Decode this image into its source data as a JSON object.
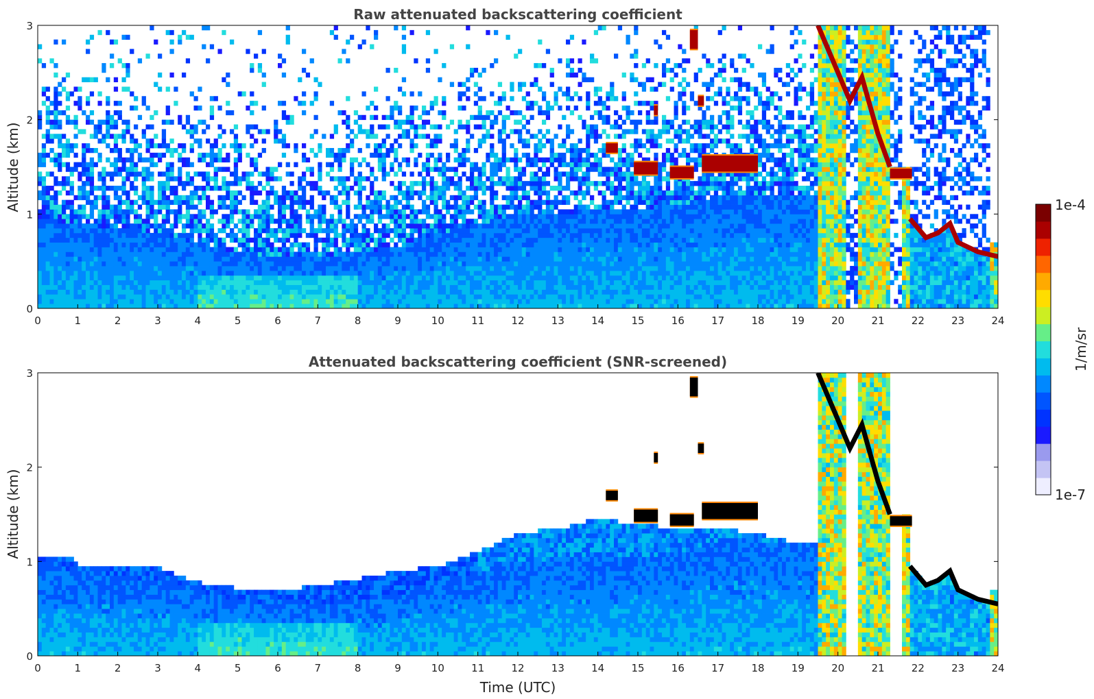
{
  "colors": {
    "scale": [
      "#eeeeff",
      "#c4c4f4",
      "#9a9aee",
      "#1a1aff",
      "#0033ff",
      "#0055ff",
      "#0088ff",
      "#00bbee",
      "#22dddd",
      "#66ee88",
      "#ccee22",
      "#ffdd00",
      "#ffaa00",
      "#ff6600",
      "#ee2200",
      "#aa0000",
      "#7a0000"
    ],
    "screened_over": "#000000",
    "background": "#ffffff"
  },
  "chart_data": [
    {
      "type": "heatmap",
      "title": "Raw attenuated backscattering coefficient",
      "ylabel": "Altitude (km)",
      "xlabel": "",
      "xlim": [
        0,
        24
      ],
      "ylim": [
        0,
        3
      ],
      "xticks": [
        "0",
        "1",
        "2",
        "3",
        "4",
        "5",
        "6",
        "7",
        "8",
        "9",
        "10",
        "11",
        "12",
        "13",
        "14",
        "15",
        "16",
        "17",
        "18",
        "19",
        "20",
        "21",
        "22",
        "23",
        "24"
      ],
      "yticks": [
        "0",
        "1",
        "2",
        "3"
      ],
      "screened": false,
      "boundary_layer_top_km": [
        [
          0,
          0.95
        ],
        [
          1,
          0.9
        ],
        [
          2,
          0.85
        ],
        [
          3,
          0.8
        ],
        [
          4,
          0.7
        ],
        [
          5,
          0.6
        ],
        [
          6,
          0.55
        ],
        [
          7,
          0.55
        ],
        [
          8,
          0.6
        ],
        [
          9,
          0.65
        ],
        [
          10,
          0.8
        ],
        [
          11,
          0.9
        ],
        [
          12,
          1.0
        ],
        [
          13,
          1.0
        ],
        [
          14,
          1.05
        ],
        [
          15,
          1.05
        ],
        [
          16,
          1.1
        ],
        [
          17,
          1.2
        ],
        [
          18,
          1.2
        ],
        [
          19,
          1.2
        ],
        [
          19.5,
          1.2
        ]
      ],
      "cloud_layers": [
        {
          "t0": 14.2,
          "t1": 14.5,
          "base_km": 1.65,
          "top_km": 1.75
        },
        {
          "t0": 14.9,
          "t1": 15.5,
          "base_km": 1.42,
          "top_km": 1.55
        },
        {
          "t0": 15.4,
          "t1": 15.5,
          "base_km": 2.05,
          "top_km": 2.15
        },
        {
          "t0": 15.8,
          "t1": 16.4,
          "base_km": 1.38,
          "top_km": 1.5
        },
        {
          "t0": 16.3,
          "t1": 16.5,
          "base_km": 2.75,
          "top_km": 2.95
        },
        {
          "t0": 16.5,
          "t1": 16.65,
          "base_km": 2.15,
          "top_km": 2.25
        },
        {
          "t0": 16.6,
          "t1": 18.0,
          "base_km": 1.45,
          "top_km": 1.62
        },
        {
          "t0": 21.3,
          "t1": 21.85,
          "base_km": 1.38,
          "top_km": 1.48
        }
      ],
      "precip_columns": [
        [
          19.5,
          20.2
        ],
        [
          20.5,
          21.3
        ],
        [
          21.6,
          21.8
        ],
        [
          23.8,
          24.0
        ]
      ],
      "low_cloud_km": [
        [
          21.8,
          0.95
        ],
        [
          22.2,
          0.75
        ],
        [
          22.5,
          0.8
        ],
        [
          22.8,
          0.9
        ],
        [
          23.0,
          0.7
        ],
        [
          23.5,
          0.6
        ],
        [
          24.0,
          0.55
        ]
      ],
      "slanted_cloud_km": [
        [
          19.5,
          3.0
        ],
        [
          20.0,
          2.5
        ],
        [
          20.3,
          2.2
        ],
        [
          20.6,
          2.45
        ],
        [
          21.0,
          1.85
        ],
        [
          21.3,
          1.5
        ]
      ]
    },
    {
      "type": "heatmap",
      "title": "Attenuated backscattering coefficient (SNR-screened)",
      "ylabel": "Altitude (km)",
      "xlabel": "Time (UTC)",
      "xlim": [
        0,
        24
      ],
      "ylim": [
        0,
        3
      ],
      "xticks": [
        "0",
        "1",
        "2",
        "3",
        "4",
        "5",
        "6",
        "7",
        "8",
        "9",
        "10",
        "11",
        "12",
        "13",
        "14",
        "15",
        "16",
        "17",
        "18",
        "19",
        "20",
        "21",
        "22",
        "23",
        "24"
      ],
      "yticks": [
        "0",
        "1",
        "2",
        "3"
      ],
      "screened": true,
      "screen_top_km": [
        [
          0,
          1.05
        ],
        [
          0.9,
          1.05
        ],
        [
          1.0,
          0.95
        ],
        [
          3,
          0.95
        ],
        [
          4,
          0.78
        ],
        [
          5,
          0.72
        ],
        [
          6,
          0.68
        ],
        [
          7,
          0.75
        ],
        [
          8,
          0.82
        ],
        [
          9,
          0.9
        ],
        [
          10,
          0.95
        ],
        [
          11,
          1.1
        ],
        [
          12,
          1.3
        ],
        [
          13,
          1.35
        ],
        [
          14,
          1.45
        ],
        [
          15,
          1.4
        ],
        [
          16,
          1.35
        ],
        [
          17,
          1.35
        ],
        [
          18,
          1.3
        ],
        [
          19,
          1.2
        ],
        [
          19.5,
          1.2
        ]
      ]
    }
  ],
  "colorbar": {
    "max_label": "1e-4",
    "min_label": "1e-7",
    "unit_label": "1/m/sr"
  }
}
